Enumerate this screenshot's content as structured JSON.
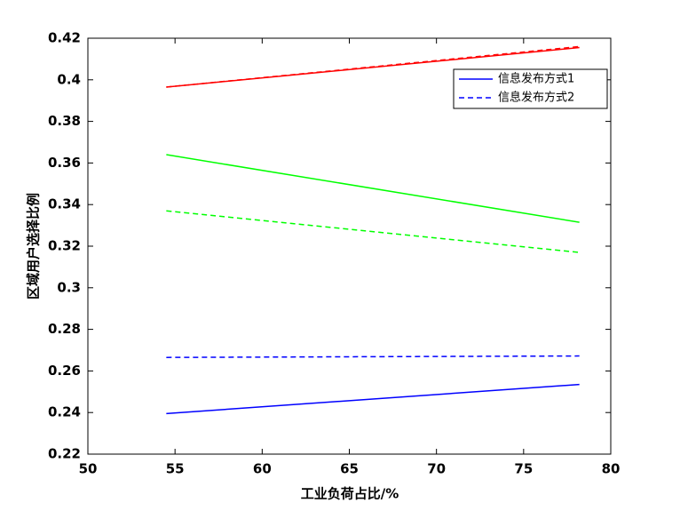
{
  "chart_data": {
    "type": "line",
    "x_label": "工业负荷占比/%",
    "y_label": "区域用户选择比例",
    "x": [
      54.5,
      78.2
    ],
    "series": [
      {
        "name": "信息发布方式1",
        "color": "#0000ff",
        "style": "solid",
        "values": [
          0.2395,
          0.2535
        ]
      },
      {
        "name": "信息发布方式2",
        "color": "#0000ff",
        "style": "dashed",
        "values": [
          0.2665,
          0.2672
        ]
      },
      {
        "color": "#ff0000",
        "style": "solid",
        "values": [
          0.3965,
          0.4155
        ]
      },
      {
        "color": "#ff0000",
        "style": "dashed",
        "values": [
          0.3965,
          0.416
        ]
      },
      {
        "color": "#00ff00",
        "style": "solid",
        "values": [
          0.364,
          0.3315
        ]
      },
      {
        "color": "#00ff00",
        "style": "dashed",
        "values": [
          0.337,
          0.317
        ]
      }
    ],
    "xlim": [
      50,
      80
    ],
    "xticks": [
      50,
      55,
      60,
      65,
      70,
      75,
      80
    ],
    "ylim": [
      0.22,
      0.42
    ],
    "yticks": [
      0.22,
      0.24,
      0.26,
      0.28,
      0.3,
      0.32,
      0.34,
      0.36,
      0.38,
      0.4,
      0.42
    ],
    "legend": "upper right"
  }
}
